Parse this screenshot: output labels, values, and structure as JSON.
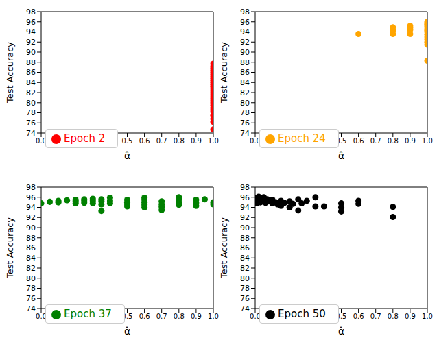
{
  "chart_data": [
    {
      "type": "scatter",
      "x_label": "α̂",
      "y_label": "Test Accuracy",
      "xlim": [
        0,
        1
      ],
      "ylim": [
        74,
        98
      ],
      "xticks": [
        {
          "value": 0,
          "label": "0.0"
        },
        0.1,
        0.2,
        0.3,
        0.4,
        0.5,
        0.6,
        0.7,
        0.8,
        0.9,
        {
          "value": 1,
          "label": "1.0"
        }
      ],
      "yticks": [
        74,
        76,
        78,
        80,
        82,
        84,
        86,
        88,
        90,
        92,
        94,
        96,
        98
      ],
      "legend": "lower left",
      "series": [
        {
          "name": "Epoch 2",
          "color": "#ff0000",
          "marker": "circle",
          "x": [
            1,
            1,
            1,
            1,
            1,
            1,
            1,
            1,
            1,
            1,
            1,
            1,
            1,
            1,
            1,
            1,
            1,
            1,
            1,
            1,
            1,
            1,
            1,
            1,
            1,
            1,
            1,
            1
          ],
          "values": [
            74.7,
            76.2,
            76.8,
            77.5,
            78.2,
            78.6,
            79.0,
            79.5,
            80.0,
            80.4,
            80.8,
            81.2,
            81.6,
            82.0,
            82.4,
            82.8,
            83.2,
            83.6,
            84.0,
            84.4,
            84.8,
            85.2,
            85.6,
            86.0,
            86.4,
            86.8,
            87.2,
            87.7
          ]
        }
      ]
    },
    {
      "type": "scatter",
      "x_label": "α̂",
      "y_label": "Test Accuracy",
      "xlim": [
        0,
        1
      ],
      "ylim": [
        74,
        98
      ],
      "xticks": [
        {
          "value": 0,
          "label": "0.0"
        },
        0.1,
        0.2,
        0.3,
        0.4,
        0.5,
        0.6,
        0.7,
        0.8,
        0.9,
        {
          "value": 1,
          "label": "1.0"
        }
      ],
      "yticks": [
        74,
        76,
        78,
        80,
        82,
        84,
        86,
        88,
        90,
        92,
        94,
        96,
        98
      ],
      "legend": "lower left",
      "series": [
        {
          "name": "Epoch 24",
          "color": "#ffa500",
          "marker": "circle",
          "x": [
            0.6,
            0.8,
            0.8,
            0.8,
            0.9,
            0.9,
            0.9,
            0.9,
            1,
            1,
            1,
            1,
            1,
            1,
            1,
            1,
            1,
            1,
            1,
            1,
            1,
            1
          ],
          "values": [
            93.6,
            93.6,
            94.3,
            94.9,
            93.6,
            94.4,
            94.8,
            95.2,
            88.3,
            91.5,
            92.0,
            92.5,
            93.0,
            93.5,
            94.0,
            94.3,
            94.6,
            95.0,
            95.3,
            95.5,
            95.7,
            96.0
          ]
        }
      ]
    },
    {
      "type": "scatter",
      "x_label": "α̂",
      "y_label": "Test Accuracy",
      "xlim": [
        0,
        1
      ],
      "ylim": [
        74,
        98
      ],
      "xticks": [
        {
          "value": 0,
          "label": "0.0"
        },
        0.1,
        0.2,
        0.3,
        0.4,
        0.5,
        0.6,
        0.7,
        0.8,
        0.9,
        {
          "value": 1,
          "label": "1.0"
        }
      ],
      "yticks": [
        74,
        76,
        78,
        80,
        82,
        84,
        86,
        88,
        90,
        92,
        94,
        96,
        98
      ],
      "legend": "lower left",
      "series": [
        {
          "name": "Epoch 37",
          "color": "#008000",
          "marker": "circle",
          "x": [
            0.0,
            0.05,
            0.1,
            0.1,
            0.15,
            0.2,
            0.2,
            0.2,
            0.25,
            0.25,
            0.25,
            0.3,
            0.3,
            0.3,
            0.35,
            0.35,
            0.35,
            0.35,
            0.4,
            0.4,
            0.4,
            0.5,
            0.5,
            0.5,
            0.5,
            0.6,
            0.6,
            0.6,
            0.6,
            0.6,
            0.7,
            0.7,
            0.7,
            0.7,
            0.8,
            0.8,
            0.8,
            0.8,
            0.9,
            0.9,
            0.9,
            0.95,
            1.0,
            1.0
          ],
          "values": [
            94.8,
            95.1,
            95.3,
            95.0,
            95.4,
            94.8,
            95.2,
            95.5,
            94.9,
            95.3,
            95.6,
            94.8,
            95.3,
            95.7,
            93.3,
            94.6,
            95.2,
            95.6,
            94.8,
            95.3,
            95.9,
            94.2,
            94.6,
            95.0,
            95.5,
            94.0,
            94.5,
            95.0,
            95.5,
            95.9,
            93.5,
            94.1,
            94.6,
            95.2,
            94.5,
            95.0,
            95.6,
            96.0,
            94.3,
            94.9,
            95.5,
            95.6,
            94.6,
            95.0
          ]
        }
      ]
    },
    {
      "type": "scatter",
      "x_label": "α̂",
      "y_label": "Test Accuracy",
      "xlim": [
        0,
        1
      ],
      "ylim": [
        74,
        98
      ],
      "xticks": [
        {
          "value": 0,
          "label": "0.0"
        },
        0.1,
        0.2,
        0.3,
        0.4,
        0.5,
        0.6,
        0.7,
        0.8,
        0.9,
        {
          "value": 1,
          "label": "1.0"
        }
      ],
      "yticks": [
        74,
        76,
        78,
        80,
        82,
        84,
        86,
        88,
        90,
        92,
        94,
        96,
        98
      ],
      "legend": "lower left",
      "series": [
        {
          "name": "Epoch 50",
          "color": "#000000",
          "marker": "circle",
          "x": [
            0.0,
            0.0,
            0.01,
            0.02,
            0.02,
            0.03,
            0.04,
            0.05,
            0.05,
            0.06,
            0.07,
            0.08,
            0.1,
            0.1,
            0.12,
            0.13,
            0.15,
            0.15,
            0.17,
            0.2,
            0.2,
            0.22,
            0.25,
            0.25,
            0.27,
            0.3,
            0.35,
            0.35,
            0.4,
            0.5,
            0.5,
            0.5,
            0.6,
            0.6,
            0.8,
            0.8
          ],
          "values": [
            95.2,
            95.8,
            94.8,
            95.5,
            96.1,
            95.0,
            95.7,
            95.3,
            96.0,
            94.9,
            95.6,
            95.2,
            94.8,
            95.5,
            95.0,
            94.6,
            95.3,
            94.3,
            94.9,
            94.0,
            95.2,
            94.7,
            93.4,
            95.6,
            94.8,
            95.3,
            94.2,
            96.0,
            94.2,
            93.2,
            94.0,
            94.8,
            94.7,
            95.3,
            92.1,
            94.1
          ]
        }
      ]
    }
  ]
}
